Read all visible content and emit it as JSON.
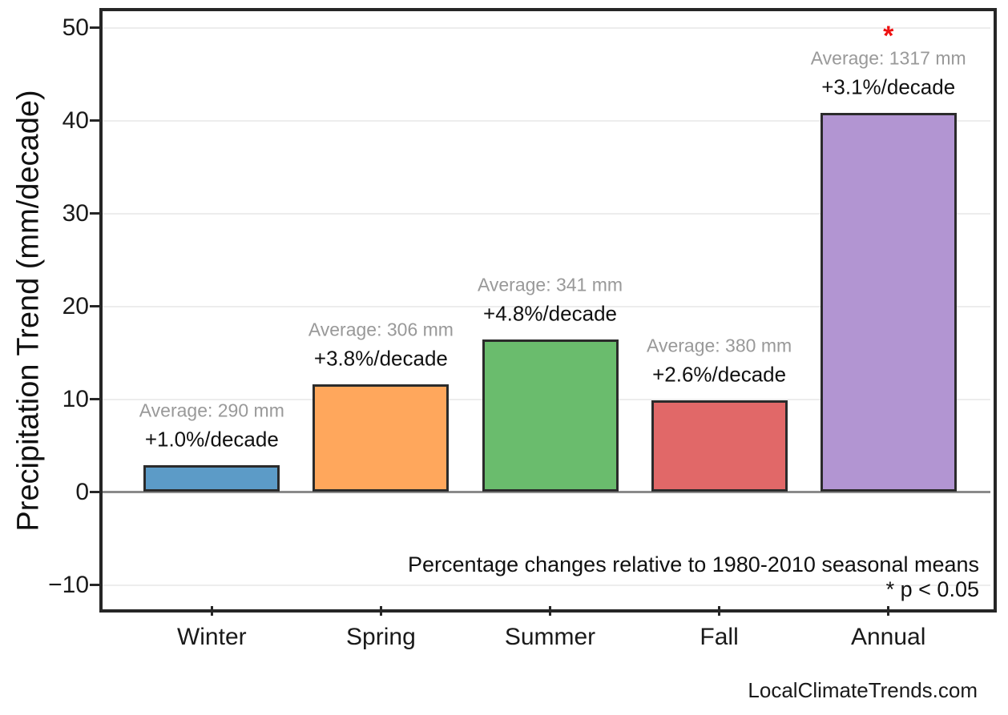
{
  "page": {
    "watermark": "LocalClimateTrends.com"
  },
  "chart_data": {
    "type": "bar",
    "title": "",
    "xlabel": "",
    "ylabel": "Precipitation Trend (mm/decade)",
    "categories": [
      "Winter",
      "Spring",
      "Summer",
      "Fall",
      "Annual"
    ],
    "values": [
      2.9,
      11.6,
      16.4,
      9.9,
      40.8
    ],
    "bars": [
      {
        "category": "Winter",
        "trend_mm_per_decade": 2.9,
        "average_label": "Average: 290 mm",
        "trend_label": "+1.0%/decade",
        "significant": false,
        "color": "#5C9BC7"
      },
      {
        "category": "Spring",
        "trend_mm_per_decade": 11.6,
        "average_label": "Average: 306 mm",
        "trend_label": "+3.8%/decade",
        "significant": false,
        "color": "#FFA75C"
      },
      {
        "category": "Summer",
        "trend_mm_per_decade": 16.4,
        "average_label": "Average: 341 mm",
        "trend_label": "+4.8%/decade",
        "significant": false,
        "color": "#6ABC6D"
      },
      {
        "category": "Fall",
        "trend_mm_per_decade": 9.9,
        "average_label": "Average: 380 mm",
        "trend_label": "+2.6%/decade",
        "significant": false,
        "color": "#E16868"
      },
      {
        "category": "Annual",
        "trend_mm_per_decade": 40.8,
        "average_label": "Average: 1317 mm",
        "trend_label": "+3.1%/decade",
        "significant": true,
        "color": "#B295D2"
      }
    ],
    "yticks": [
      -10,
      0,
      10,
      20,
      30,
      40,
      50
    ],
    "ytick_labels": [
      "−10",
      "0",
      "10",
      "20",
      "30",
      "40",
      "50"
    ],
    "ylim": [
      -12.7,
      51.7
    ],
    "grid": "horizontal",
    "legend": "none",
    "significance_marker": "*",
    "annotations": {
      "note_line1": "Percentage changes relative to 1980-2010 seasonal means",
      "note_line2": "* p < 0.05"
    }
  },
  "colors": {
    "bar_edge": "#2b2b2b",
    "spine": "#262626",
    "gridline": "#ededed",
    "zero_line": "#8a8a8a",
    "average_label_text": "#999999",
    "trend_label_text": "#111111",
    "significance_star": "#ee1111",
    "background": "#ffffff"
  }
}
